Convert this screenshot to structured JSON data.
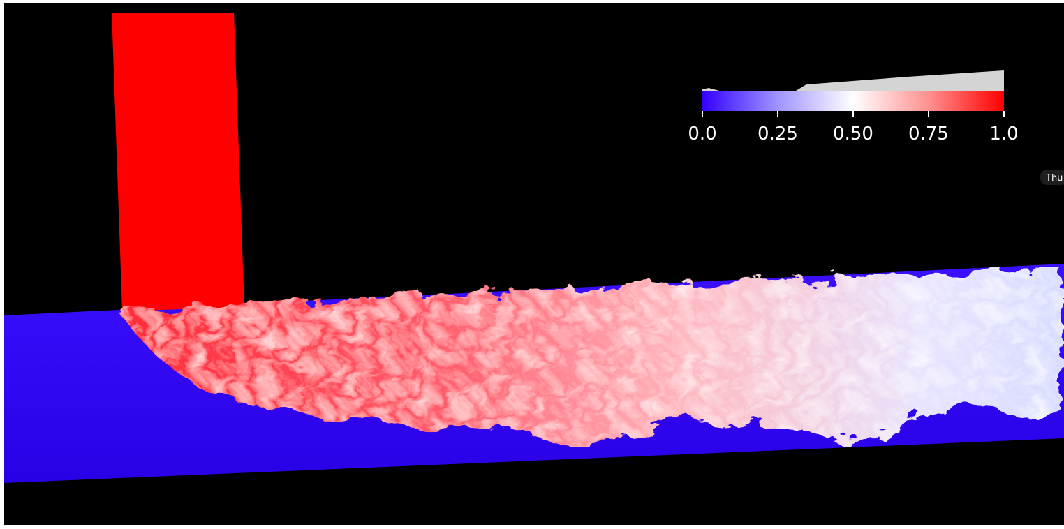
{
  "colorbar": {
    "range": [
      0,
      1
    ],
    "ticks": [
      {
        "value": 0,
        "label": "0.0"
      },
      0.25,
      {
        "value": 0.5,
        "label": "0.50"
      },
      0.75,
      {
        "value": 1,
        "label": "1.0"
      }
    ]
  },
  "time_label": "Thu"
}
